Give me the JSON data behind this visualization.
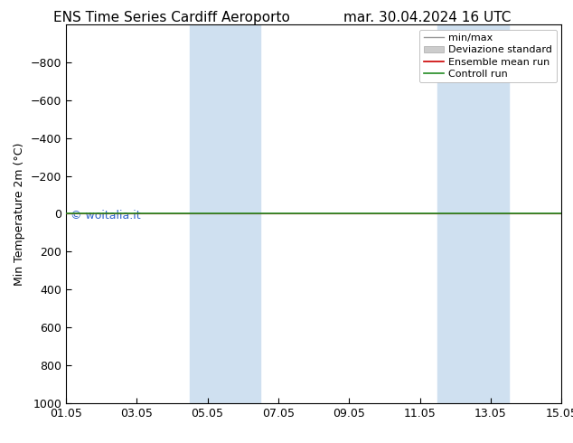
{
  "title_left": "ENS Time Series Cardiff Aeroporto",
  "title_right": "mar. 30.04.2024 16 UTC",
  "ylabel": "Min Temperature 2m (°C)",
  "ylim_top": -1000,
  "ylim_bottom": 1000,
  "yticks": [
    -800,
    -600,
    -400,
    -200,
    0,
    200,
    400,
    600,
    800,
    1000
  ],
  "xtick_labels": [
    "01.05",
    "03.05",
    "05.05",
    "07.05",
    "09.05",
    "11.05",
    "13.05",
    "15.05"
  ],
  "xtick_positions": [
    0,
    2,
    4,
    6,
    8,
    10,
    12,
    14
  ],
  "shaded_bands": [
    {
      "x_start": 3.5,
      "x_end": 5.5
    },
    {
      "x_start": 10.5,
      "x_end": 12.5
    }
  ],
  "shaded_color": "#cfe0f0",
  "control_run_y": 0.0,
  "control_run_color": "#228B22",
  "ensemble_mean_color": "#cc0000",
  "minmax_color": "#999999",
  "std_color": "#cccccc",
  "watermark": "© woitalia.it",
  "watermark_color": "#3366cc",
  "legend_labels": [
    "min/max",
    "Deviazione standard",
    "Ensemble mean run",
    "Controll run"
  ],
  "legend_colors": [
    "#999999",
    "#cccccc",
    "#cc0000",
    "#228B22"
  ],
  "background_color": "#ffffff",
  "plot_bg_color": "#ffffff",
  "title_fontsize": 11,
  "axis_fontsize": 9,
  "legend_fontsize": 8
}
